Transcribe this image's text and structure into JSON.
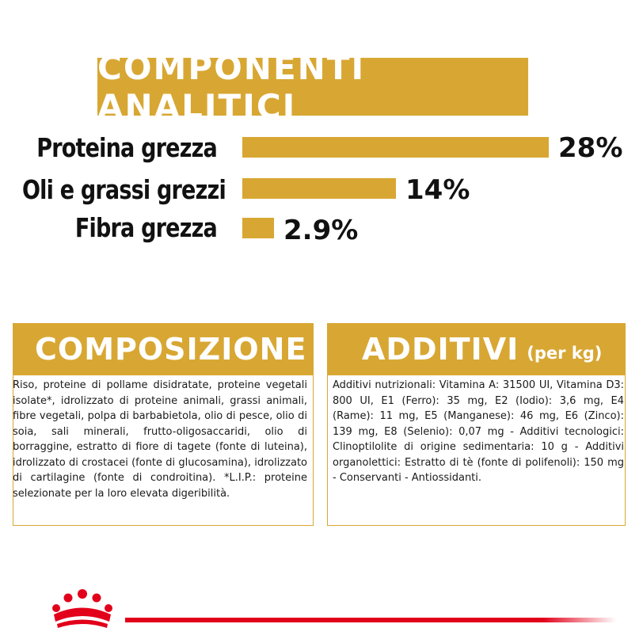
{
  "analitici": {
    "title": "COMPONENTI ANALITICI",
    "rows": [
      {
        "label": "Proteina grezza",
        "value": "28%",
        "percent": 28
      },
      {
        "label": "Oli e grassi grezzi",
        "value": "14%",
        "percent": 14
      },
      {
        "label": "Fibra grezza",
        "value": "2.9%",
        "percent": 2.9
      }
    ]
  },
  "composizione": {
    "title": "COMPOSIZIONE",
    "text": "Riso, proteine di pollame disidratate, proteine vegetali isolate*, idrolizzato di proteine animali, grassi animali, fibre vegetali, polpa di barbabietola, olio di pesce, olio di soia, sali minerali, frutto-oligosaccaridi, olio di borraggine, estratto di fiore di tagete (fonte di luteina), idrolizzato di crostacei (fonte di glucosamina), idrolizzato di cartilagine (fonte di condroitina). *L.I.P.: proteine selezionate per la loro elevata digeribilità."
  },
  "additivi": {
    "title": "ADDITIVI",
    "subtitle": "(per kg)",
    "text": "Additivi nutrizionali: Vitamina A: 31500 UI, Vitamina D3: 800 UI, E1 (Ferro): 35 mg, E2 (Iodio): 3,6 mg, E4 (Rame): 11 mg, E5 (Manganese): 46 mg, E6 (Zinco): 139 mg, E8 (Selenio): 0,07 mg - Additivi tecnologici: Clinoptilolite di origine sedimentaria: 10 g - Additivi organolettici: Estratto di tè (fonte di polifenoli): 150 mg - Conservanti - Antiossidanti."
  },
  "colors": {
    "accent": "#d8a733",
    "brand_red": "#e2001a"
  },
  "icons": {
    "brand_logo": "royal-crown-icon"
  }
}
